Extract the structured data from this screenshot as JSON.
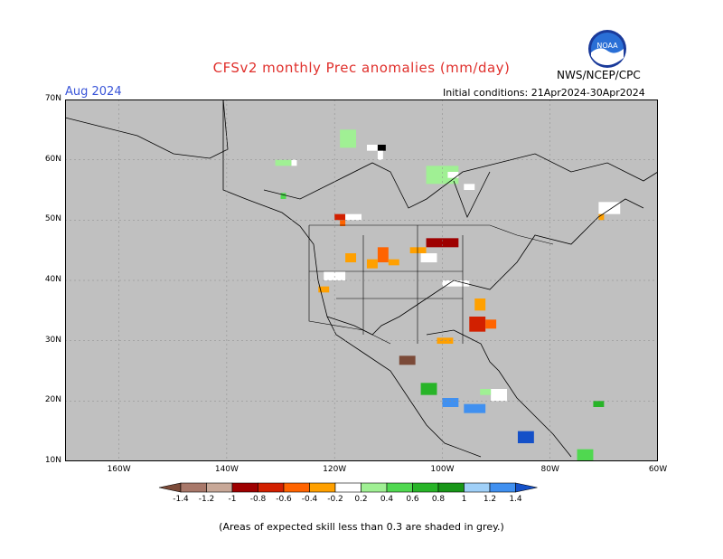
{
  "title": "CFSv2 monthly Prec anomalies (mm/day)",
  "target_month": "Aug 2024",
  "initial_conditions": "Initial conditions: 21Apr2024-30Apr2024",
  "agency": "NWS/NCEP/CPC",
  "logo_text": "NOAA",
  "map": {
    "lon_min": -170,
    "lon_max": -60,
    "lat_min": 10,
    "lat_max": 70,
    "lat_ticks": [
      {
        "v": 70,
        "label": "70N"
      },
      {
        "v": 60,
        "label": "60N"
      },
      {
        "v": 50,
        "label": "50N"
      },
      {
        "v": 40,
        "label": "40N"
      },
      {
        "v": 30,
        "label": "30N"
      },
      {
        "v": 20,
        "label": "20N"
      },
      {
        "v": 10,
        "label": "10N"
      }
    ],
    "lon_ticks": [
      {
        "v": -160,
        "label": "160W"
      },
      {
        "v": -140,
        "label": "140W"
      },
      {
        "v": -120,
        "label": "120W"
      },
      {
        "v": -100,
        "label": "100W"
      },
      {
        "v": -80,
        "label": "80W"
      },
      {
        "v": -60,
        "label": "60W"
      }
    ],
    "colors": {
      "background": "#c0c0c0",
      "coast": "#000000"
    }
  },
  "colorbar": {
    "labels": [
      "-1.4",
      "-1.2",
      "-1",
      "-0.8",
      "-0.6",
      "-0.4",
      "-0.2",
      "0.2",
      "0.4",
      "0.6",
      "0.8",
      "1",
      "1.2",
      "1.4"
    ],
    "colors": [
      "#7b4a38",
      "#a8786a",
      "#c8a898",
      "#9e0000",
      "#d22000",
      "#ff6400",
      "#ffa000",
      "#ffffff",
      "#a0f094",
      "#50d850",
      "#28b428",
      "#189618",
      "#a0d0f8",
      "#4090f0",
      "#1450c8"
    ]
  },
  "footnote": "(Areas of expected skill less than 0.3 are shaded in grey.)",
  "anomaly_cells": [
    {
      "lon": -119,
      "lat": 62,
      "w": 3,
      "h": 3,
      "c": "#a0f094"
    },
    {
      "lon": -114,
      "lat": 61.5,
      "w": 2,
      "h": 1,
      "c": "#ffffff"
    },
    {
      "lon": -112,
      "lat": 61.5,
      "w": 1.5,
      "h": 1,
      "c": "#000000"
    },
    {
      "lon": -112,
      "lat": 60,
      "w": 1,
      "h": 1.5,
      "c": "#ffffff"
    },
    {
      "lon": -131,
      "lat": 59,
      "w": 3,
      "h": 1,
      "c": "#a0f094"
    },
    {
      "lon": -128,
      "lat": 59,
      "w": 1,
      "h": 1,
      "c": "#ffffff"
    },
    {
      "lon": -130,
      "lat": 53.5,
      "w": 1,
      "h": 1,
      "c": "#50d850"
    },
    {
      "lon": -103,
      "lat": 56,
      "w": 6,
      "h": 3,
      "c": "#a0f094"
    },
    {
      "lon": -99,
      "lat": 57,
      "w": 2,
      "h": 1,
      "c": "#ffffff"
    },
    {
      "lon": -96,
      "lat": 55,
      "w": 2,
      "h": 1,
      "c": "#ffffff"
    },
    {
      "lon": -71,
      "lat": 51,
      "w": 4,
      "h": 2,
      "c": "#ffffff"
    },
    {
      "lon": -71,
      "lat": 50,
      "w": 1,
      "h": 1,
      "c": "#ffa000"
    },
    {
      "lon": -120,
      "lat": 50,
      "w": 2,
      "h": 1,
      "c": "#d22000"
    },
    {
      "lon": -118,
      "lat": 50,
      "w": 3,
      "h": 1,
      "c": "#ffffff"
    },
    {
      "lon": -119,
      "lat": 49,
      "w": 1,
      "h": 1,
      "c": "#ff6400"
    },
    {
      "lon": -103,
      "lat": 45.5,
      "w": 6,
      "h": 1.5,
      "c": "#9e0000"
    },
    {
      "lon": -106,
      "lat": 44.5,
      "w": 3,
      "h": 1,
      "c": "#ffa000"
    },
    {
      "lon": -104,
      "lat": 43,
      "w": 3,
      "h": 1.5,
      "c": "#ffffff"
    },
    {
      "lon": -112,
      "lat": 43,
      "w": 2,
      "h": 2.5,
      "c": "#ff6400"
    },
    {
      "lon": -114,
      "lat": 42,
      "w": 2,
      "h": 1.5,
      "c": "#ffa000"
    },
    {
      "lon": -110,
      "lat": 42.5,
      "w": 2,
      "h": 1,
      "c": "#ffa000"
    },
    {
      "lon": -118,
      "lat": 43,
      "w": 2,
      "h": 1.5,
      "c": "#ffa000"
    },
    {
      "lon": -122,
      "lat": 40,
      "w": 4,
      "h": 1.5,
      "c": "#ffffff"
    },
    {
      "lon": -123,
      "lat": 38,
      "w": 2,
      "h": 1,
      "c": "#ffa000"
    },
    {
      "lon": -100,
      "lat": 39,
      "w": 5,
      "h": 1,
      "c": "#ffffff"
    },
    {
      "lon": -94,
      "lat": 35,
      "w": 2,
      "h": 2,
      "c": "#ffa000"
    },
    {
      "lon": -95,
      "lat": 31.5,
      "w": 3,
      "h": 2.5,
      "c": "#d22000"
    },
    {
      "lon": -92,
      "lat": 32,
      "w": 2,
      "h": 1.5,
      "c": "#ff6400"
    },
    {
      "lon": -101,
      "lat": 29.5,
      "w": 3,
      "h": 1,
      "c": "#ffa000"
    },
    {
      "lon": -108,
      "lat": 26,
      "w": 3,
      "h": 1.5,
      "c": "#7b4a38"
    },
    {
      "lon": -104,
      "lat": 21,
      "w": 3,
      "h": 2,
      "c": "#28b428"
    },
    {
      "lon": -100,
      "lat": 19,
      "w": 3,
      "h": 1.5,
      "c": "#4090f0"
    },
    {
      "lon": -96,
      "lat": 18,
      "w": 4,
      "h": 1.5,
      "c": "#4090f0"
    },
    {
      "lon": -91,
      "lat": 20,
      "w": 3,
      "h": 2,
      "c": "#ffffff"
    },
    {
      "lon": -93,
      "lat": 21,
      "w": 2,
      "h": 1,
      "c": "#a0f094"
    },
    {
      "lon": -86,
      "lat": 13,
      "w": 3,
      "h": 2,
      "c": "#1450c8"
    },
    {
      "lon": -72,
      "lat": 19,
      "w": 2,
      "h": 1,
      "c": "#28b428"
    },
    {
      "lon": -75,
      "lat": 10,
      "w": 3,
      "h": 2,
      "c": "#50d850"
    }
  ]
}
